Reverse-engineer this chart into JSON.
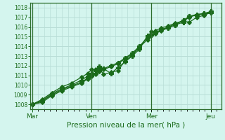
{
  "xlabel": "Pression niveau de la mer( hPa )",
  "bg_color": "#d4f5ee",
  "grid_color_major": "#b8ddd6",
  "grid_color_minor": "#c8ede6",
  "line_color": "#1a6b1a",
  "axis_color": "#2d6e2d",
  "tick_color": "#1a6b1a",
  "ylim": [
    1007.5,
    1018.5
  ],
  "yticks": [
    1008,
    1009,
    1010,
    1011,
    1012,
    1013,
    1014,
    1015,
    1016,
    1017,
    1018
  ],
  "xtick_labels": [
    "Mar",
    "Ven",
    "Mer",
    "Jeu"
  ],
  "xtick_positions": [
    0.0,
    0.333,
    0.667,
    1.0
  ],
  "series": [
    {
      "x": [
        0.0,
        0.055,
        0.11,
        0.165,
        0.22,
        0.275,
        0.31,
        0.333,
        0.355,
        0.375,
        0.4,
        0.44,
        0.48,
        0.52,
        0.56,
        0.6,
        0.645,
        0.667,
        0.69,
        0.72,
        0.76,
        0.8,
        0.845,
        0.88,
        0.92,
        0.96,
        1.0
      ],
      "y": [
        1008.0,
        1008.5,
        1009.2,
        1009.8,
        1010.2,
        1010.8,
        1011.2,
        1011.6,
        1011.6,
        1011.75,
        1011.1,
        1011.3,
        1011.5,
        1012.5,
        1013.1,
        1013.9,
        1015.0,
        1015.5,
        1015.6,
        1015.9,
        1016.1,
        1016.4,
        1016.6,
        1016.5,
        1017.0,
        1017.2,
        1017.5
      ],
      "marker": "D",
      "markersize": 3.0,
      "lw": 0.9
    },
    {
      "x": [
        0.0,
        0.055,
        0.11,
        0.165,
        0.22,
        0.275,
        0.31,
        0.333,
        0.355,
        0.375,
        0.4,
        0.44,
        0.48,
        0.52,
        0.56,
        0.6,
        0.645,
        0.667,
        0.69,
        0.72,
        0.76,
        0.8,
        0.845,
        0.88,
        0.92,
        0.96,
        1.0
      ],
      "y": [
        1008.0,
        1008.4,
        1009.1,
        1009.6,
        1010.0,
        1010.5,
        1010.9,
        1011.2,
        1011.5,
        1011.9,
        1011.7,
        1011.2,
        1011.8,
        1012.4,
        1013.0,
        1013.7,
        1015.1,
        1015.2,
        1015.4,
        1015.7,
        1015.9,
        1016.2,
        1016.5,
        1017.1,
        1017.2,
        1017.4,
        1017.6
      ],
      "marker": "P",
      "markersize": 4.0,
      "lw": 0.9
    },
    {
      "x": [
        0.0,
        0.055,
        0.11,
        0.165,
        0.22,
        0.275,
        0.31,
        0.333,
        0.355,
        0.375,
        0.4,
        0.44,
        0.48,
        0.52,
        0.56,
        0.6,
        0.645,
        0.667,
        0.69,
        0.72,
        0.76,
        0.8,
        0.845,
        0.88,
        0.92,
        0.96,
        1.0
      ],
      "y": [
        1008.0,
        1008.2,
        1008.9,
        1009.4,
        1009.8,
        1010.2,
        1010.6,
        1010.9,
        1011.1,
        1011.4,
        1011.6,
        1011.9,
        1012.2,
        1012.7,
        1013.2,
        1013.9,
        1014.7,
        1015.2,
        1015.3,
        1015.6,
        1015.9,
        1016.2,
        1016.7,
        1017.0,
        1017.3,
        1017.4,
        1017.5
      ],
      "marker": "D",
      "markersize": 3.0,
      "lw": 0.9
    },
    {
      "x": [
        0.0,
        0.055,
        0.11,
        0.165,
        0.22,
        0.275,
        0.31,
        0.333,
        0.355,
        0.375,
        0.4,
        0.44,
        0.48,
        0.52,
        0.56,
        0.6,
        0.645,
        0.667,
        0.69,
        0.72,
        0.76,
        0.8,
        0.845,
        0.88,
        0.92,
        0.96,
        1.0
      ],
      "y": [
        1008.0,
        1008.3,
        1009.0,
        1009.5,
        1009.9,
        1010.3,
        1010.7,
        1011.0,
        1011.2,
        1011.5,
        1011.7,
        1012.0,
        1012.3,
        1012.8,
        1013.3,
        1014.0,
        1014.9,
        1015.2,
        1015.4,
        1015.7,
        1016.0,
        1016.3,
        1016.7,
        1017.1,
        1017.3,
        1017.3,
        1017.5
      ],
      "marker": "P",
      "markersize": 4.0,
      "lw": 0.9
    }
  ],
  "vline_positions": [
    0.0,
    0.333,
    0.667,
    1.0
  ],
  "vline_color": "#2d6e2d"
}
